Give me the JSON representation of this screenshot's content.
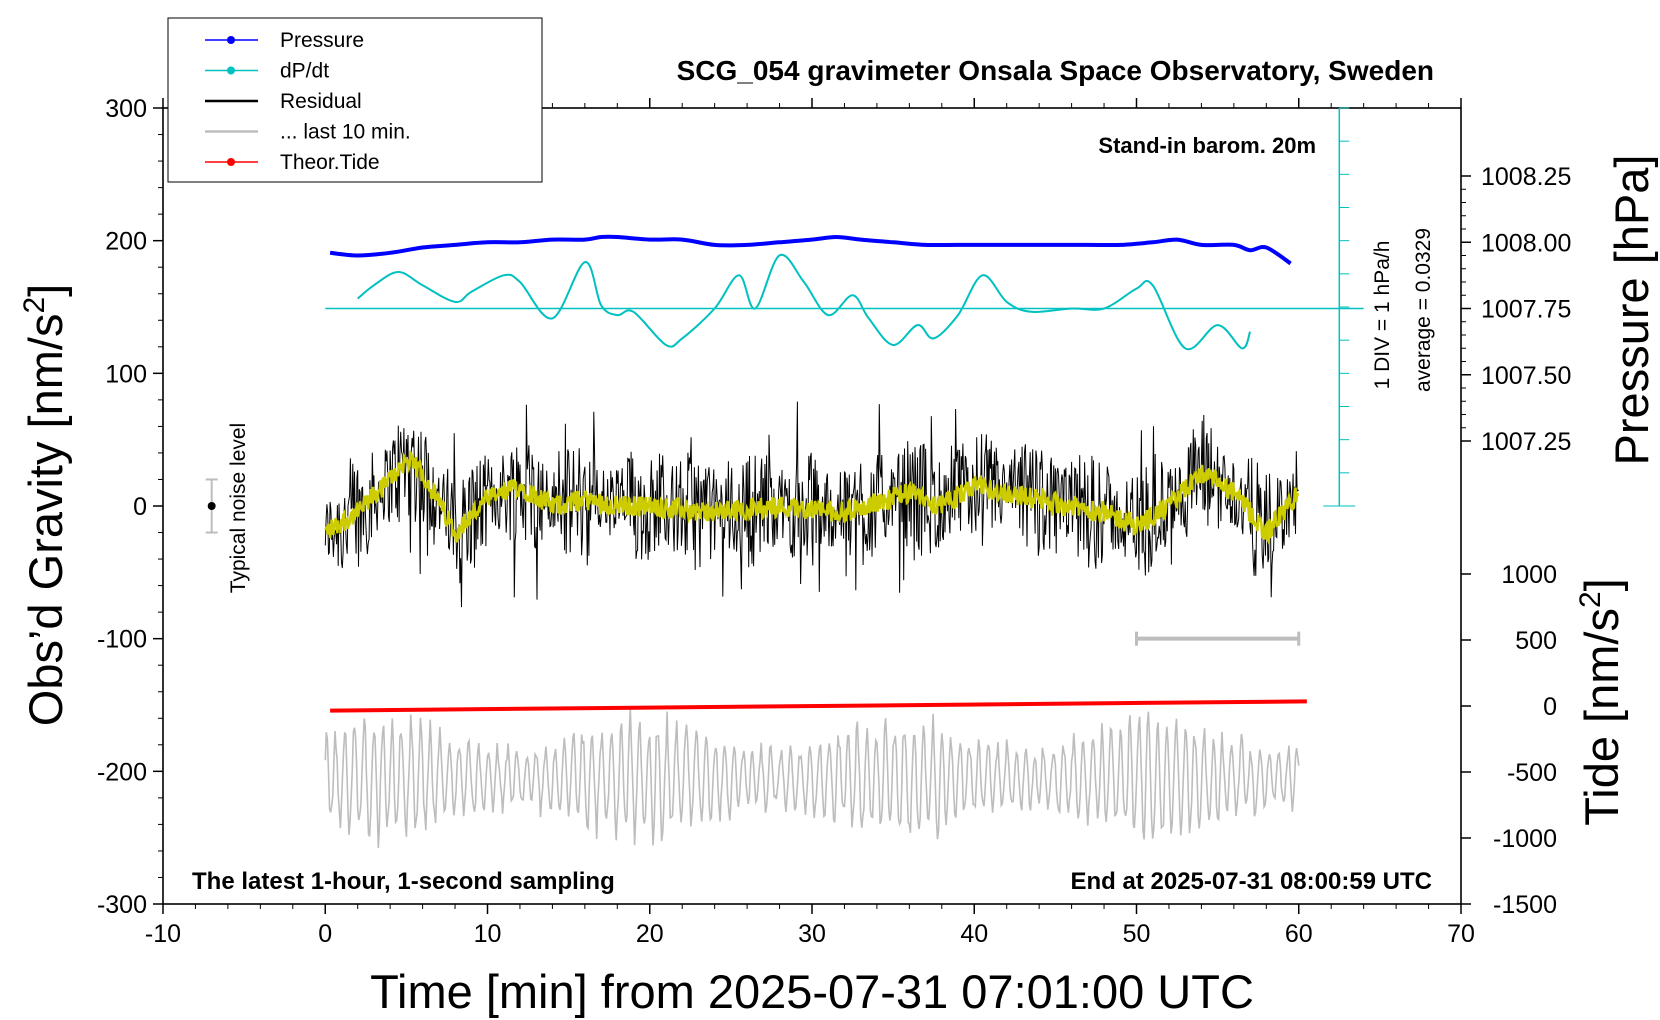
{
  "chart_data": {
    "type": "line",
    "title": "SCG_054 gravimeter Onsala Space Observatory, Sweden",
    "xlabel": "Time [min] from 2025-07-31 07:01:00 UTC",
    "ylabel_left": "Obs’d Gravity [nm/s",
    "ylabel_left_sup": "2",
    "ylabel_left_end": "]",
    "ylabel_right_pressure": "Pressure [hPa]",
    "ylabel_right_tide": "Tide [nm/s",
    "ylabel_right_tide_sup": "2",
    "ylabel_right_tide_end": "]",
    "xlim": [
      -10,
      70
    ],
    "ylim": [
      -300,
      300
    ],
    "x_ticks": [
      "-10",
      "0",
      "10",
      "20",
      "30",
      "40",
      "50",
      "60",
      "70"
    ],
    "y_ticks": [
      "300",
      "200",
      "100",
      "0",
      "-100",
      "-200",
      "-300"
    ],
    "pressure_ticks": [
      "1008.25",
      "1008.00",
      "1007.75",
      "1007.50",
      "1007.25"
    ],
    "tide_ticks": [
      "1000",
      "500",
      "0",
      "-500",
      "-1000",
      "-1500"
    ],
    "grid": false,
    "legend_position": "top-left",
    "legend": [
      {
        "name": "Pressure",
        "color": "#0000ff",
        "marker": true
      },
      {
        "name": "dP/dt",
        "color": "#00c0c0",
        "marker": true
      },
      {
        "name": "Residual",
        "color": "#000000",
        "marker": false
      },
      {
        "name": "... last 10 min.",
        "color": "#bdbdbd",
        "marker": false
      },
      {
        "name": "Theor.Tide",
        "color": "#ff0000",
        "marker": true
      }
    ],
    "annotations": {
      "stand_in": "Stand-in barom. 20m",
      "div_label": "1 DIV = 1 hPa/h",
      "average_label": "average = 0.0329",
      "noise_label": "Typical noise level",
      "bottom_left": "The latest 1-hour, 1-second sampling",
      "bottom_right": "End at 2025-07-31 08:00:59 UTC"
    },
    "colors": {
      "pressure": "#0000ff",
      "dpdt": "#00c0c0",
      "residual": "#000000",
      "smoothed_residual": "#cccc00",
      "last10": "#bdbdbd",
      "tide": "#ff0000"
    },
    "series": {
      "pressure_hPa": {
        "x": [
          0.3,
          2,
          4,
          6,
          8,
          10,
          12,
          14,
          16,
          17,
          18,
          20,
          22,
          24,
          26,
          28,
          30,
          31.5,
          33,
          35,
          37,
          39,
          41,
          43,
          45,
          47,
          49,
          51,
          52.5,
          54,
          56,
          57,
          58,
          59.5
        ],
        "y": [
          1007.96,
          1007.95,
          1007.96,
          1007.98,
          1007.99,
          1008.0,
          1008.0,
          1008.01,
          1008.01,
          1008.02,
          1008.02,
          1008.01,
          1008.01,
          1007.99,
          1007.99,
          1008.0,
          1008.01,
          1008.02,
          1008.01,
          1008.0,
          1007.99,
          1007.99,
          1007.99,
          1007.99,
          1007.99,
          1007.99,
          1007.99,
          1008.0,
          1008.01,
          1007.99,
          1007.99,
          1007.97,
          1007.98,
          1007.92
        ]
      },
      "dpdt_div": {
        "baseline": 1007.75,
        "x": [
          2,
          3,
          4.5,
          6,
          8,
          9,
          11,
          12,
          14,
          16,
          17,
          18,
          19,
          21,
          22,
          24,
          25.5,
          26.5,
          28,
          29.5,
          31,
          32.5,
          33.5,
          35,
          36.5,
          37.5,
          39,
          40.5,
          42,
          43.5,
          46,
          48,
          50,
          51,
          53,
          55,
          56.5,
          57
        ],
        "y": [
          0.3,
          0.7,
          1.1,
          0.7,
          0.2,
          0.5,
          1.0,
          0.8,
          -0.3,
          1.4,
          0.1,
          -0.2,
          -0.1,
          -1.1,
          -0.9,
          0.0,
          1.0,
          0.0,
          1.6,
          0.8,
          -0.2,
          0.4,
          -0.3,
          -1.1,
          -0.5,
          -0.9,
          -0.2,
          1.0,
          0.2,
          -0.1,
          0.0,
          0.0,
          0.6,
          0.7,
          -1.2,
          -0.5,
          -1.2,
          -0.7
        ]
      },
      "residual_envelope": {
        "x": [
          0,
          2,
          4,
          5,
          6,
          8,
          10,
          12,
          14,
          16,
          18,
          20,
          24,
          28,
          32,
          36,
          38,
          40,
          44,
          48,
          50,
          52,
          54,
          56,
          58,
          60
        ],
        "y": [
          -20,
          -5,
          20,
          35,
          25,
          -20,
          5,
          15,
          0,
          5,
          0,
          0,
          -5,
          0,
          -5,
          10,
          0,
          15,
          5,
          -5,
          -15,
          0,
          25,
          10,
          -20,
          10
        ]
      },
      "last10_x_range": [
        50,
        60
      ],
      "tide_nm_s2": {
        "x": [
          0.3,
          60.5
        ],
        "y": [
          -35,
          35
        ]
      },
      "noise_bar": {
        "x": -7,
        "center": 0,
        "half_range": 20
      }
    }
  }
}
